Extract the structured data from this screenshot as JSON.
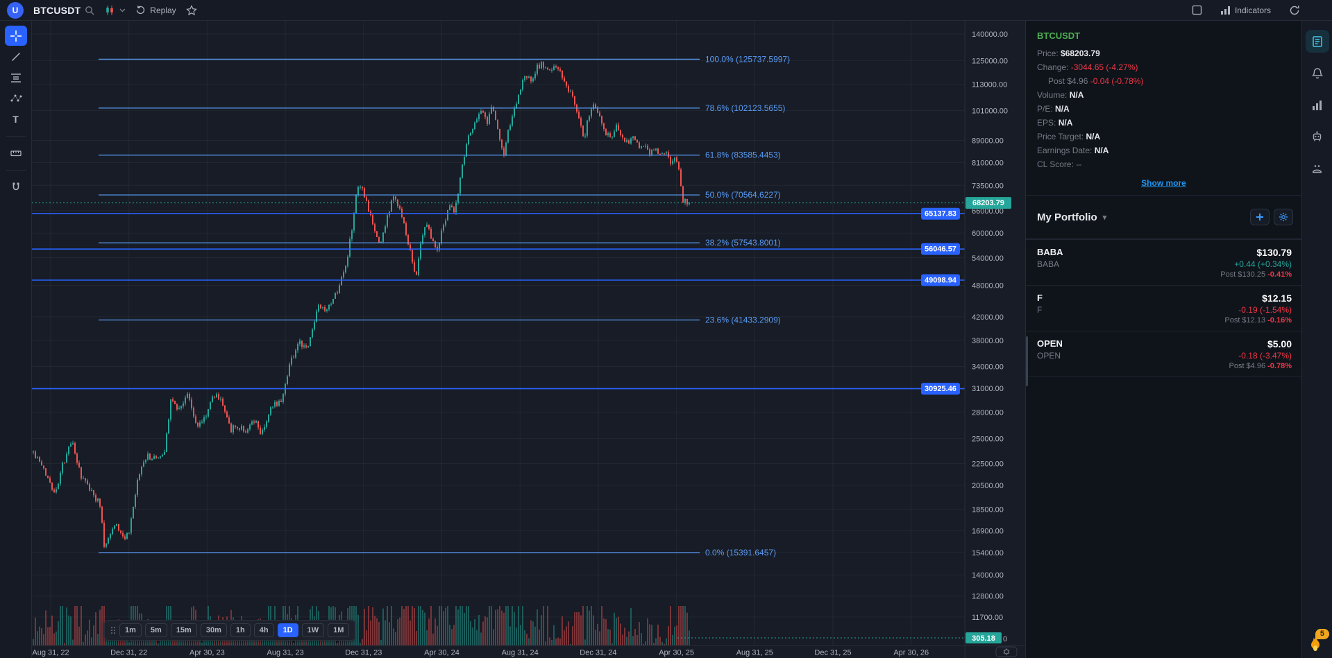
{
  "topbar": {
    "avatar": "U",
    "symbol": "BTCUSDT",
    "replay_label": "Replay",
    "indicators_label": "Indicators"
  },
  "icons": {
    "caret_down": "▾",
    "text_tool": "T"
  },
  "chart_data": {
    "type": "candlestick",
    "symbol": "BTCUSDT",
    "timeframe": "1D",
    "log_scale": true,
    "current_price": 68203.79,
    "current_price_label": "68203.79",
    "volume_last_label": "305.18",
    "axis_zero_label": "0",
    "ylim": [
      11700,
      140000
    ],
    "y_ticks": [
      140000,
      125000,
      113000,
      101000,
      89000,
      81000,
      73500,
      66000,
      60000,
      54000,
      48000,
      42000,
      38000,
      34000,
      31000,
      28000,
      25000,
      22500,
      20500,
      18500,
      16900,
      15400,
      14000,
      12800,
      11700
    ],
    "x_ticks": [
      "Aug 31, 22",
      "Dec 31, 22",
      "Apr 30, 23",
      "Aug 31, 23",
      "Dec 31, 23",
      "Apr 30, 24",
      "Aug 31, 24",
      "Dec 31, 24",
      "Apr 30, 25",
      "Aug 31, 25",
      "Dec 31, 25",
      "Apr 30, 26"
    ],
    "fib_levels": [
      {
        "label": "100.0% (125737.5997)",
        "price": 125737.5997
      },
      {
        "label": "78.6% (102123.5655)",
        "price": 102123.5655
      },
      {
        "label": "61.8% (83585.4453)",
        "price": 83585.4453
      },
      {
        "label": "50.0% (70564.6227)",
        "price": 70564.6227
      },
      {
        "label": "38.2% (57543.8001)",
        "price": 57543.8001
      },
      {
        "label": "23.6% (41433.2909)",
        "price": 41433.2909
      },
      {
        "label": "0.0% (15391.6457)",
        "price": 15391.6457
      }
    ],
    "h_lines": [
      {
        "label": "65137.83",
        "price": 65137.83
      },
      {
        "label": "56046.57",
        "price": 56046.57
      },
      {
        "label": "49098.94",
        "price": 49098.94
      },
      {
        "label": "30925.46",
        "price": 30925.46
      }
    ],
    "timeframes": [
      "1m",
      "5m",
      "15m",
      "30m",
      "1h",
      "4h",
      "1D",
      "1W",
      "1M"
    ],
    "active_timeframe": "1D",
    "colors": {
      "up": "#26a69a",
      "down": "#ef5350",
      "fib": "#5b9cf6",
      "hline": "#2962ff",
      "current": "#26a69a"
    },
    "price_path": [
      [
        2,
        23600
      ],
      [
        20,
        21500
      ],
      [
        34,
        19800
      ],
      [
        44,
        22300
      ],
      [
        58,
        24800
      ],
      [
        70,
        21300
      ],
      [
        86,
        20000
      ],
      [
        99,
        18800
      ],
      [
        104,
        15900
      ],
      [
        112,
        16600
      ],
      [
        120,
        17500
      ],
      [
        131,
        16400
      ],
      [
        140,
        16600
      ],
      [
        152,
        20800
      ],
      [
        163,
        23200
      ],
      [
        178,
        23000
      ],
      [
        190,
        23300
      ],
      [
        200,
        29500
      ],
      [
        212,
        28400
      ],
      [
        224,
        30200
      ],
      [
        238,
        26300
      ],
      [
        250,
        27500
      ],
      [
        262,
        30200
      ],
      [
        274,
        29400
      ],
      [
        286,
        26000
      ],
      [
        298,
        26300
      ],
      [
        310,
        25800
      ],
      [
        321,
        27000
      ],
      [
        330,
        25600
      ],
      [
        345,
        28500
      ],
      [
        360,
        29700
      ],
      [
        372,
        34800
      ],
      [
        385,
        37500
      ],
      [
        398,
        36900
      ],
      [
        412,
        43800
      ],
      [
        424,
        42700
      ],
      [
        434,
        45000
      ],
      [
        444,
        48500
      ],
      [
        452,
        52000
      ],
      [
        462,
        62000
      ],
      [
        468,
        71500
      ],
      [
        474,
        73000
      ],
      [
        482,
        68000
      ],
      [
        492,
        61500
      ],
      [
        502,
        56800
      ],
      [
        512,
        64500
      ],
      [
        522,
        70500
      ],
      [
        530,
        66500
      ],
      [
        540,
        59000
      ],
      [
        548,
        53000
      ],
      [
        553,
        49800
      ],
      [
        560,
        57500
      ],
      [
        568,
        63500
      ],
      [
        576,
        58500
      ],
      [
        584,
        56500
      ],
      [
        592,
        61000
      ],
      [
        600,
        67500
      ],
      [
        608,
        66000
      ],
      [
        616,
        73500
      ],
      [
        622,
        83000
      ],
      [
        630,
        91500
      ],
      [
        640,
        97000
      ],
      [
        648,
        101500
      ],
      [
        655,
        95500
      ],
      [
        662,
        103000
      ],
      [
        668,
        97500
      ],
      [
        674,
        88500
      ],
      [
        680,
        84000
      ],
      [
        688,
        94500
      ],
      [
        696,
        102000
      ],
      [
        704,
        111500
      ],
      [
        712,
        117500
      ],
      [
        720,
        113500
      ],
      [
        728,
        121500
      ],
      [
        736,
        123500
      ],
      [
        744,
        118500
      ],
      [
        752,
        122500
      ],
      [
        760,
        120000
      ],
      [
        768,
        113500
      ],
      [
        776,
        108500
      ],
      [
        784,
        103000
      ],
      [
        790,
        94500
      ],
      [
        796,
        90000
      ],
      [
        802,
        98500
      ],
      [
        810,
        103500
      ],
      [
        818,
        99500
      ],
      [
        826,
        92000
      ],
      [
        834,
        89500
      ],
      [
        842,
        94000
      ],
      [
        850,
        91500
      ],
      [
        858,
        87500
      ],
      [
        866,
        90500
      ],
      [
        874,
        86000
      ],
      [
        882,
        88000
      ],
      [
        890,
        84500
      ],
      [
        898,
        86500
      ],
      [
        906,
        83000
      ],
      [
        912,
        85500
      ],
      [
        918,
        82500
      ],
      [
        922,
        80000
      ],
      [
        926,
        83500
      ],
      [
        930,
        80500
      ],
      [
        933,
        76500
      ],
      [
        936,
        70500
      ],
      [
        939,
        66000
      ],
      [
        941,
        69500
      ],
      [
        943,
        71500
      ],
      [
        945,
        64000
      ],
      [
        947,
        62000
      ],
      [
        949,
        68203.79
      ]
    ],
    "volume_spikes": [
      [
        347,
        2.2
      ],
      [
        430,
        2.6
      ],
      [
        589,
        1.8
      ],
      [
        743,
        2.4
      ],
      [
        940,
        1.9
      ]
    ]
  },
  "right_panel": {
    "symbol": "BTCUSDT",
    "price_label": "Price:",
    "price_value": "$68203.79",
    "change_label": "Change:",
    "change_value": "-3044.65 (-4.27%)",
    "post_label": "Post $4.96",
    "post_value": "-0.04 (-0.78%)",
    "volume_label": "Volume:",
    "volume_value": "N/A",
    "pe_label": "P/E:",
    "pe_value": "N/A",
    "eps_label": "EPS:",
    "eps_value": "N/A",
    "target_label": "Price Target:",
    "target_value": "N/A",
    "earnings_label": "Earnings Date:",
    "earnings_value": "N/A",
    "cl_label": "CL Score:",
    "cl_value": "--",
    "show_more": "Show more",
    "portfolio_title": "My Portfolio",
    "watchlist": [
      {
        "symbol": "BABA",
        "name": "BABA",
        "price": "$130.79",
        "change": "+0.44 (+0.34%)",
        "change_dir": "up",
        "post_label": "Post  $130.25",
        "post_change": "-0.41%"
      },
      {
        "symbol": "F",
        "name": "F",
        "price": "$12.15",
        "change": "-0.19 (-1.54%)",
        "change_dir": "down",
        "post_label": "Post  $12.13",
        "post_change": "-0.16%"
      },
      {
        "symbol": "OPEN",
        "name": "OPEN",
        "price": "$5.00",
        "change": "-0.18 (-3.47%)",
        "change_dir": "down",
        "post_label": "Post  $4.96",
        "post_change": "-0.78%"
      }
    ]
  },
  "streak": {
    "count": "5"
  }
}
